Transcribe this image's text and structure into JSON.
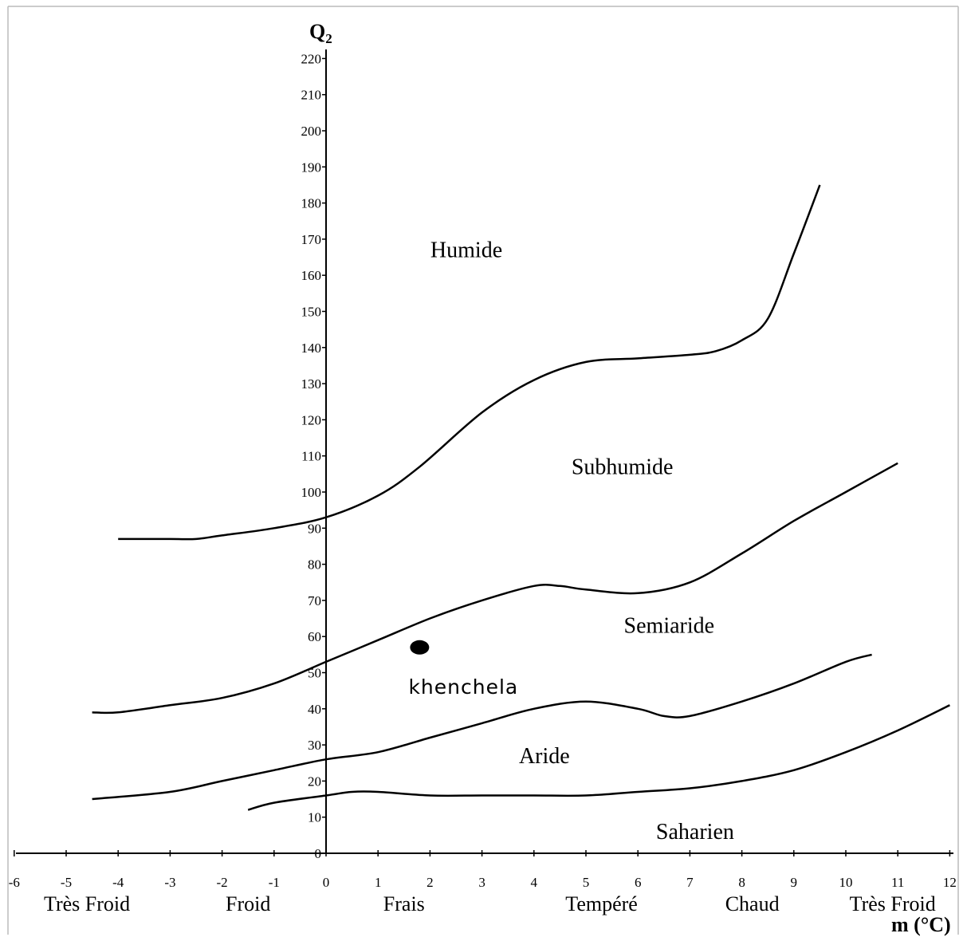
{
  "chart_data": {
    "type": "line",
    "title": "",
    "ylabel": "Q",
    "ylabel_sub": "2",
    "xlabel": "m (°C)",
    "xlim": [
      -6,
      12
    ],
    "ylim": [
      0,
      220
    ],
    "x_ticks": [
      -6,
      -5,
      -4,
      -3,
      -2,
      -1,
      0,
      1,
      2,
      3,
      4,
      5,
      6,
      7,
      8,
      9,
      10,
      11,
      12
    ],
    "x_tick_labels": [
      "-6",
      "-5",
      "-4",
      "-3",
      "-2",
      "-1",
      "0",
      "1",
      "2",
      "3",
      "4",
      "5",
      "6",
      "7",
      "8",
      "9",
      "10",
      "11",
      "12"
    ],
    "y_ticks": [
      0,
      10,
      20,
      30,
      40,
      50,
      60,
      70,
      80,
      90,
      100,
      110,
      120,
      130,
      140,
      150,
      160,
      170,
      180,
      190,
      200,
      210,
      220
    ],
    "y_tick_labels": [
      "0",
      "10",
      "20",
      "30",
      "40",
      "50",
      "60",
      "70",
      "80",
      "90",
      "100",
      "110",
      "120",
      "130",
      "140",
      "150",
      "160",
      "170",
      "180",
      "190",
      "200",
      "210",
      "220"
    ],
    "series": [
      {
        "x": [
          -4,
          -3,
          -2.5,
          -2,
          -1,
          0,
          1,
          1.8,
          3,
          4,
          5,
          6,
          7,
          7.5,
          8,
          8.5,
          9,
          9.5
        ],
        "y": [
          87,
          87,
          87,
          88,
          90,
          93,
          99,
          107,
          122,
          131,
          136,
          137,
          138,
          139,
          142,
          148,
          166,
          185
        ]
      },
      {
        "x": [
          -4.5,
          -4,
          -3,
          -2,
          -1,
          0,
          1,
          2,
          3,
          4,
          4.5,
          5,
          6,
          7,
          8,
          9,
          10,
          11
        ],
        "y": [
          39,
          39,
          41,
          43,
          47,
          53,
          59,
          65,
          70,
          74,
          74,
          73,
          72,
          75,
          83,
          92,
          100,
          108
        ]
      },
      {
        "x": [
          -4.5,
          -3,
          -2,
          -1,
          0,
          1,
          2,
          3,
          4,
          5,
          6,
          6.5,
          7,
          8,
          9,
          10,
          10.5
        ],
        "y": [
          15,
          17,
          20,
          23,
          26,
          28,
          32,
          36,
          40,
          42,
          40,
          38,
          38,
          42,
          47,
          53,
          55
        ]
      },
      {
        "x": [
          -1.5,
          -1,
          0,
          0.5,
          1,
          2,
          3,
          4,
          5,
          6,
          7,
          8,
          9,
          10,
          11,
          12
        ],
        "y": [
          12,
          14,
          16,
          17,
          17,
          16,
          16,
          16,
          16,
          17,
          18,
          20,
          23,
          28,
          34,
          41
        ]
      }
    ],
    "zones": [
      {
        "label": "Humide",
        "x": 2.7,
        "y": 165
      },
      {
        "label": "Subhumide",
        "x": 5.7,
        "y": 105
      },
      {
        "label": "Semiaride",
        "x": 6.6,
        "y": 61
      },
      {
        "label": "Aride",
        "x": 4.2,
        "y": 25
      },
      {
        "label": "Saharien",
        "x": 7.1,
        "y": 4
      }
    ],
    "points": [
      {
        "label": "khenchela",
        "x": 1.8,
        "y": 57
      }
    ],
    "winter_categories": [
      {
        "label": "Très Froid",
        "x": -4.6
      },
      {
        "label": "Froid",
        "x": -1.5
      },
      {
        "label": "Frais",
        "x": 1.5
      },
      {
        "label": "Tempéré",
        "x": 5.3
      },
      {
        "label": "Chaud",
        "x": 8.2
      },
      {
        "label": "Très Froid",
        "x": 10.9
      }
    ],
    "grid": false,
    "legend": "none"
  }
}
